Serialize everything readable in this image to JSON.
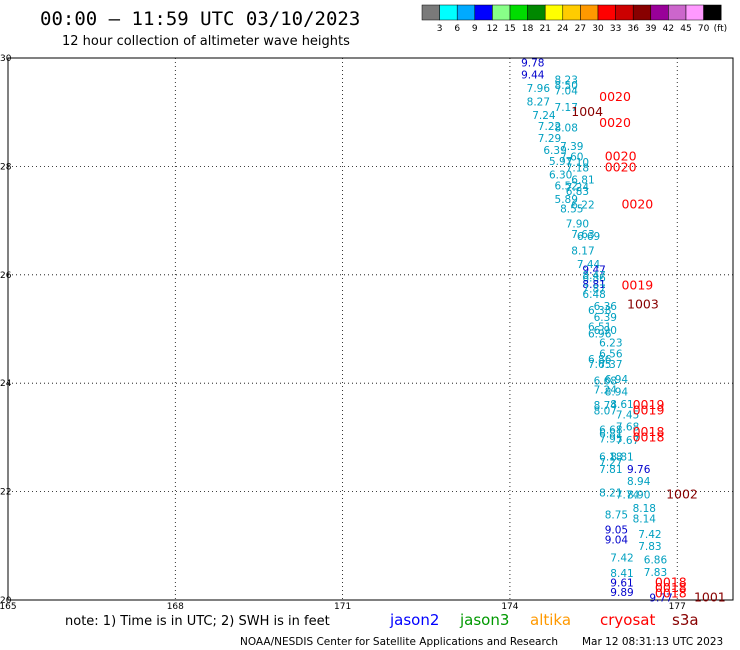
{
  "chart_data": {
    "type": "scatter",
    "title": "00:00 – 11:59 UTC 03/10/2023",
    "subtitle": "12 hour collection of altimeter wave heights",
    "xlim": [
      165,
      178
    ],
    "ylim": [
      20,
      30
    ],
    "x_ticks": [
      "165",
      "168",
      "171",
      "174",
      "177"
    ],
    "y_ticks": [
      "20",
      "22",
      "24",
      "26",
      "28",
      "30"
    ],
    "grid": true,
    "colorbar": {
      "labels": [
        "3",
        "6",
        "9",
        "12",
        "15",
        "18",
        "21",
        "24",
        "27",
        "30",
        "33",
        "36",
        "39",
        "42",
        "45",
        "70"
      ],
      "unit": "(ft)",
      "colors": [
        "#7a7a7a",
        "#00ffff",
        "#00aaff",
        "#0000ff",
        "#88ff88",
        "#00dd00",
        "#008800",
        "#ffff00",
        "#ffcc00",
        "#ff9900",
        "#ff0000",
        "#cc0000",
        "#880000",
        "#990099",
        "#cc66cc",
        "#ff99ff",
        "#000000"
      ]
    },
    "series": [
      {
        "name": "jason2",
        "color": "#00a0c0",
        "points": [
          {
            "x": 174.2,
            "y": 29.92,
            "label": "9.78",
            "color": "#0000cc"
          },
          {
            "x": 174.2,
            "y": 29.7,
            "label": "9.44",
            "color": "#0000cc"
          },
          {
            "x": 174.8,
            "y": 29.6,
            "label": "8.23"
          },
          {
            "x": 174.8,
            "y": 29.5,
            "label": "8.50"
          },
          {
            "x": 174.3,
            "y": 29.45,
            "label": "7.96"
          },
          {
            "x": 174.8,
            "y": 29.4,
            "label": "7.04"
          },
          {
            "x": 174.3,
            "y": 29.2,
            "label": "8.27"
          },
          {
            "x": 174.8,
            "y": 29.1,
            "label": "7.17"
          },
          {
            "x": 174.4,
            "y": 28.95,
            "label": "7.24"
          },
          {
            "x": 174.5,
            "y": 28.75,
            "label": "7.22"
          },
          {
            "x": 174.8,
            "y": 28.72,
            "label": "8.08"
          },
          {
            "x": 174.5,
            "y": 28.52,
            "label": "7.29"
          },
          {
            "x": 174.9,
            "y": 28.38,
            "label": "7.39"
          },
          {
            "x": 174.6,
            "y": 28.3,
            "label": "6.39"
          },
          {
            "x": 174.9,
            "y": 28.18,
            "label": "7.60"
          },
          {
            "x": 174.7,
            "y": 28.1,
            "label": "5.97"
          },
          {
            "x": 175.0,
            "y": 28.08,
            "label": "7.10"
          },
          {
            "x": 175.0,
            "y": 27.98,
            "label": "7.18"
          },
          {
            "x": 174.7,
            "y": 27.85,
            "label": "6.30"
          },
          {
            "x": 175.1,
            "y": 27.76,
            "label": "6.81"
          },
          {
            "x": 174.8,
            "y": 27.65,
            "label": "6.52"
          },
          {
            "x": 175.0,
            "y": 27.62,
            "label": "7.24"
          },
          {
            "x": 175.0,
            "y": 27.55,
            "label": "6.83"
          },
          {
            "x": 174.8,
            "y": 27.4,
            "label": "5.89"
          },
          {
            "x": 175.1,
            "y": 27.3,
            "label": "6.22"
          },
          {
            "x": 174.9,
            "y": 27.22,
            "label": "8.55"
          },
          {
            "x": 175.0,
            "y": 26.95,
            "label": "7.90"
          },
          {
            "x": 175.1,
            "y": 26.75,
            "label": "7.63"
          },
          {
            "x": 175.2,
            "y": 26.72,
            "label": "6.69"
          },
          {
            "x": 175.1,
            "y": 26.45,
            "label": "8.17"
          },
          {
            "x": 175.2,
            "y": 26.2,
            "label": "7.44"
          },
          {
            "x": 175.3,
            "y": 26.1,
            "label": "9.47",
            "color": "#0000cc"
          },
          {
            "x": 175.3,
            "y": 26.0,
            "label": "8.47"
          },
          {
            "x": 175.3,
            "y": 25.95,
            "label": "6.86"
          },
          {
            "x": 175.3,
            "y": 25.83,
            "label": "8.81",
            "color": "#0000cc"
          },
          {
            "x": 175.3,
            "y": 25.75,
            "label": "7.87"
          },
          {
            "x": 175.3,
            "y": 25.65,
            "label": "6.48"
          },
          {
            "x": 175.5,
            "y": 25.42,
            "label": "6.36"
          },
          {
            "x": 175.4,
            "y": 25.35,
            "label": "6.38"
          },
          {
            "x": 175.5,
            "y": 25.22,
            "label": "6.39"
          },
          {
            "x": 175.4,
            "y": 25.05,
            "label": "6.51"
          },
          {
            "x": 175.5,
            "y": 24.98,
            "label": "6.90"
          },
          {
            "x": 175.4,
            "y": 24.92,
            "label": "6.96"
          },
          {
            "x": 175.6,
            "y": 24.75,
            "label": "6.23"
          },
          {
            "x": 175.6,
            "y": 24.55,
            "label": "6.56"
          },
          {
            "x": 175.4,
            "y": 24.45,
            "label": "6.86"
          },
          {
            "x": 175.6,
            "y": 24.35,
            "label": "7.37"
          },
          {
            "x": 175.4,
            "y": 24.35,
            "label": "7.65"
          },
          {
            "x": 175.7,
            "y": 24.08,
            "label": "6.94"
          },
          {
            "x": 175.5,
            "y": 24.05,
            "label": "6.68"
          },
          {
            "x": 175.5,
            "y": 23.88,
            "label": "7.24"
          },
          {
            "x": 175.7,
            "y": 23.85,
            "label": "8.94"
          },
          {
            "x": 175.8,
            "y": 23.62,
            "label": "8.61"
          },
          {
            "x": 175.5,
            "y": 23.6,
            "label": "8.74"
          },
          {
            "x": 175.5,
            "y": 23.5,
            "label": "8.07"
          },
          {
            "x": 175.9,
            "y": 23.42,
            "label": "7.45"
          },
          {
            "x": 175.9,
            "y": 23.2,
            "label": "7.68"
          },
          {
            "x": 175.6,
            "y": 23.15,
            "label": "6.68"
          },
          {
            "x": 175.6,
            "y": 23.07,
            "label": "6.81"
          },
          {
            "x": 175.6,
            "y": 22.98,
            "label": "7.95"
          },
          {
            "x": 175.9,
            "y": 22.95,
            "label": "7.67"
          },
          {
            "x": 175.6,
            "y": 22.65,
            "label": "6.18"
          },
          {
            "x": 175.8,
            "y": 22.65,
            "label": "8.81"
          },
          {
            "x": 175.6,
            "y": 22.55,
            "label": "7.27"
          },
          {
            "x": 175.6,
            "y": 22.42,
            "label": "7.81"
          },
          {
            "x": 176.1,
            "y": 22.42,
            "label": "9.76",
            "color": "#0000cc"
          },
          {
            "x": 176.1,
            "y": 22.2,
            "label": "8.94"
          },
          {
            "x": 175.6,
            "y": 21.98,
            "label": "8.21"
          },
          {
            "x": 175.9,
            "y": 21.95,
            "label": "7.74"
          },
          {
            "x": 176.1,
            "y": 21.95,
            "label": "8.90"
          },
          {
            "x": 176.2,
            "y": 21.7,
            "label": "8.18"
          },
          {
            "x": 175.7,
            "y": 21.58,
            "label": "8.75"
          },
          {
            "x": 176.2,
            "y": 21.5,
            "label": "8.14"
          },
          {
            "x": 175.7,
            "y": 21.3,
            "label": "9.05",
            "color": "#0000cc"
          },
          {
            "x": 176.3,
            "y": 21.22,
            "label": "7.42"
          },
          {
            "x": 175.7,
            "y": 21.12,
            "label": "9.04",
            "color": "#0000cc"
          },
          {
            "x": 176.3,
            "y": 21.0,
            "label": "7.83"
          },
          {
            "x": 175.8,
            "y": 20.78,
            "label": "7.42"
          },
          {
            "x": 176.4,
            "y": 20.75,
            "label": "6.86"
          },
          {
            "x": 175.8,
            "y": 20.5,
            "label": "8.41"
          },
          {
            "x": 176.4,
            "y": 20.52,
            "label": "7.83"
          },
          {
            "x": 175.8,
            "y": 20.32,
            "label": "9.61",
            "color": "#0000cc"
          },
          {
            "x": 175.8,
            "y": 20.15,
            "label": "9.89",
            "color": "#0000cc"
          },
          {
            "x": 176.5,
            "y": 20.05,
            "label": "9.77",
            "color": "#0000cc"
          }
        ]
      },
      {
        "name": "time-stamps",
        "points": [
          {
            "x": 175.6,
            "y": 29.28,
            "label": "0020",
            "color": "#ff0000"
          },
          {
            "x": 175.1,
            "y": 29.0,
            "label": "1004",
            "color": "#880000"
          },
          {
            "x": 175.6,
            "y": 28.8,
            "label": "0020",
            "color": "#ff0000"
          },
          {
            "x": 175.7,
            "y": 28.18,
            "label": "0020",
            "color": "#ff0000"
          },
          {
            "x": 175.7,
            "y": 27.98,
            "label": "0020",
            "color": "#ff0000"
          },
          {
            "x": 176.0,
            "y": 27.3,
            "label": "0020",
            "color": "#ff0000"
          },
          {
            "x": 176.0,
            "y": 25.8,
            "label": "0019",
            "color": "#ff0000"
          },
          {
            "x": 176.1,
            "y": 25.45,
            "label": "1003",
            "color": "#880000"
          },
          {
            "x": 176.2,
            "y": 23.6,
            "label": "0019",
            "color": "#ff0000"
          },
          {
            "x": 176.2,
            "y": 23.5,
            "label": "0019",
            "color": "#ff0000"
          },
          {
            "x": 176.2,
            "y": 23.1,
            "label": "0018",
            "color": "#ff0000"
          },
          {
            "x": 176.2,
            "y": 23.0,
            "label": "0018",
            "color": "#ff0000"
          },
          {
            "x": 176.8,
            "y": 21.95,
            "label": "1002",
            "color": "#880000"
          },
          {
            "x": 176.6,
            "y": 20.32,
            "label": "0018",
            "color": "#ff0000"
          },
          {
            "x": 176.6,
            "y": 20.22,
            "label": "0018",
            "color": "#ff0000"
          },
          {
            "x": 176.6,
            "y": 20.12,
            "label": "0018",
            "color": "#ff0000"
          },
          {
            "x": 177.3,
            "y": 20.05,
            "label": "1001",
            "color": "#880000"
          }
        ]
      }
    ],
    "legend": {
      "note": "note: 1) Time is in UTC; 2) SWH is in feet",
      "satellites": [
        {
          "name": "jason2",
          "color": "#0000ff"
        },
        {
          "name": "jason3",
          "color": "#009900"
        },
        {
          "name": "altika",
          "color": "#ff9900"
        },
        {
          "name": "cryosat",
          "color": "#ff0000"
        },
        {
          "name": "s3a",
          "color": "#880000"
        }
      ]
    },
    "footer": {
      "left": "NOAA/NESDIS Center for Satellite Applications and Research",
      "right": "Mar 12 08:31:13 UTC 2023"
    }
  }
}
